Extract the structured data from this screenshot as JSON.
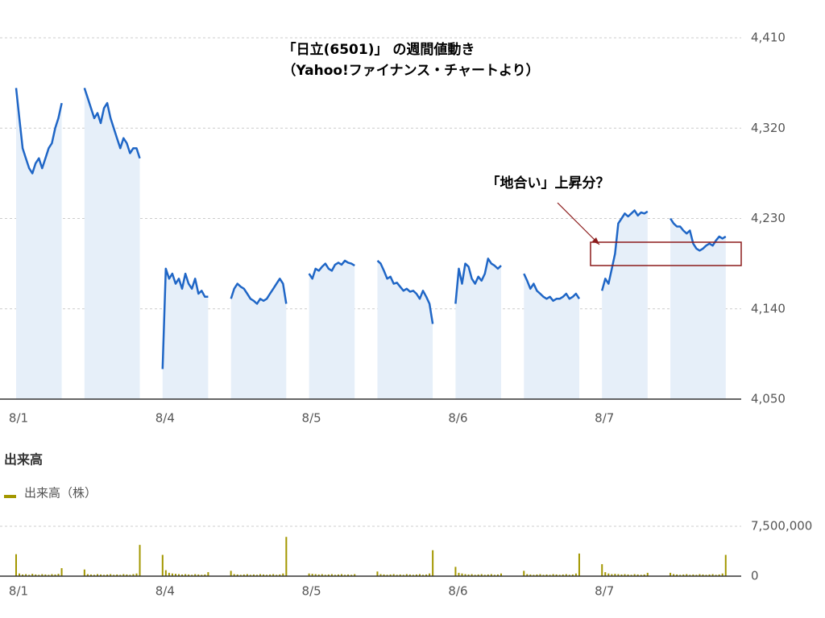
{
  "chart_data": [
    {
      "type": "line",
      "title": "「日立(6501)」 の週間値動き",
      "subtitle": "（Yahoo!ファイナンス・チャートより）",
      "annotation": "「地合い」上昇分？",
      "color": "#1f66c6",
      "xlim": [
        0,
        224
      ],
      "xticks": [
        {
          "value": 0,
          "label": "8/1"
        },
        {
          "value": 45,
          "label": "8/4"
        },
        {
          "value": 90,
          "label": "8/5"
        },
        {
          "value": 135,
          "label": "8/6"
        },
        {
          "value": 180,
          "label": "8/7"
        }
      ],
      "ylim": [
        4050,
        4410
      ],
      "yticks": [
        {
          "value": 4050,
          "label": "4,050"
        },
        {
          "value": 4140,
          "label": "4,140"
        },
        {
          "value": 4230,
          "label": "4,230"
        },
        {
          "value": 4320,
          "label": "4,320"
        },
        {
          "value": 4410,
          "label": "4,410"
        }
      ],
      "grid": true,
      "values": [
        4360,
        4330,
        4300,
        4290,
        4280,
        4275,
        4285,
        4290,
        4280,
        4290,
        4300,
        4305,
        4320,
        4330,
        4345,
        null,
        null,
        null,
        null,
        null,
        null,
        4360,
        4350,
        4340,
        4330,
        4335,
        4325,
        4340,
        4345,
        4330,
        4320,
        4310,
        4300,
        4310,
        4305,
        4295,
        4300,
        4300,
        4290,
        null,
        null,
        null,
        null,
        null,
        null,
        4080,
        4180,
        4170,
        4175,
        4165,
        4170,
        4160,
        4175,
        4165,
        4160,
        4170,
        4155,
        4158,
        4152,
        4152,
        null,
        null,
        null,
        null,
        null,
        null,
        4150,
        4160,
        4165,
        4162,
        4160,
        4155,
        4150,
        4148,
        4145,
        4150,
        4148,
        4150,
        4155,
        4160,
        4165,
        4170,
        4165,
        4145,
        null,
        null,
        null,
        null,
        null,
        null,
        4175,
        4170,
        4180,
        4178,
        4182,
        4185,
        4180,
        4178,
        4184,
        4186,
        4184,
        4188,
        4186,
        4185,
        4183,
        null,
        null,
        null,
        null,
        null,
        null,
        4188,
        4185,
        4178,
        4170,
        4172,
        4165,
        4166,
        4162,
        4158,
        4160,
        4157,
        4158,
        4155,
        4150,
        4158,
        4152,
        4145,
        4125,
        null,
        null,
        null,
        null,
        null,
        null,
        4145,
        4180,
        4165,
        4185,
        4182,
        4170,
        4165,
        4172,
        4168,
        4175,
        4190,
        4185,
        4183,
        4180,
        4183,
        null,
        null,
        null,
        null,
        null,
        null,
        4175,
        4168,
        4160,
        4165,
        4158,
        4155,
        4152,
        4150,
        4152,
        4148,
        4150,
        4150,
        4152,
        4155,
        4150,
        4152,
        4155,
        4150,
        null,
        null,
        null,
        null,
        null,
        null,
        4158,
        4170,
        4165,
        4180,
        4195,
        4225,
        4230,
        4235,
        4232,
        4235,
        4238,
        4233,
        4236,
        4235,
        4237,
        null,
        null,
        null,
        null,
        null,
        null,
        4230,
        4225,
        4222,
        4222,
        4218,
        4215,
        4218,
        4205,
        4200,
        4198,
        4200,
        4203,
        4205,
        4203,
        4208,
        4212,
        4210,
        4212
      ]
    },
    {
      "type": "bar",
      "title": "出来高",
      "xlim": [
        0,
        224
      ],
      "xticks": [
        {
          "value": 0,
          "label": "8/1"
        },
        {
          "value": 45,
          "label": "8/4"
        },
        {
          "value": 90,
          "label": "8/5"
        },
        {
          "value": 135,
          "label": "8/6"
        },
        {
          "value": 180,
          "label": "8/7"
        }
      ],
      "ylim": [
        0,
        7500000
      ],
      "yticks": [
        0,
        {
          "value": 7500000,
          "label": "7,500,000"
        }
      ],
      "grid": true,
      "series": [
        {
          "name": "出来高（株）",
          "color": "#a39700",
          "values": [
            3300000,
            400000,
            250000,
            300000,
            200000,
            350000,
            250000,
            200000,
            300000,
            250000,
            200000,
            300000,
            250000,
            350000,
            1200000,
            null,
            null,
            null,
            null,
            null,
            null,
            1000000,
            300000,
            250000,
            200000,
            300000,
            250000,
            200000,
            250000,
            300000,
            200000,
            250000,
            200000,
            300000,
            250000,
            200000,
            300000,
            400000,
            4700000,
            null,
            null,
            null,
            null,
            null,
            null,
            3200000,
            900000,
            500000,
            400000,
            350000,
            300000,
            250000,
            300000,
            250000,
            200000,
            300000,
            250000,
            200000,
            250000,
            600000,
            null,
            null,
            null,
            null,
            null,
            null,
            800000,
            300000,
            250000,
            200000,
            250000,
            300000,
            200000,
            250000,
            200000,
            300000,
            250000,
            200000,
            250000,
            300000,
            200000,
            250000,
            400000,
            5900000,
            null,
            null,
            null,
            null,
            null,
            null,
            400000,
            350000,
            300000,
            250000,
            300000,
            200000,
            250000,
            300000,
            200000,
            250000,
            300000,
            200000,
            250000,
            200000,
            300000,
            null,
            null,
            null,
            null,
            null,
            null,
            700000,
            300000,
            250000,
            200000,
            250000,
            300000,
            200000,
            250000,
            200000,
            300000,
            250000,
            200000,
            250000,
            300000,
            200000,
            250000,
            400000,
            3900000,
            null,
            null,
            null,
            null,
            null,
            null,
            1400000,
            500000,
            400000,
            300000,
            250000,
            300000,
            200000,
            250000,
            300000,
            200000,
            250000,
            300000,
            200000,
            250000,
            400000,
            null,
            null,
            null,
            null,
            null,
            null,
            800000,
            300000,
            250000,
            200000,
            250000,
            300000,
            200000,
            250000,
            200000,
            300000,
            250000,
            200000,
            250000,
            300000,
            200000,
            250000,
            400000,
            3400000,
            null,
            null,
            null,
            null,
            null,
            null,
            1800000,
            600000,
            400000,
            300000,
            350000,
            300000,
            250000,
            300000,
            250000,
            200000,
            300000,
            250000,
            200000,
            250000,
            500000,
            null,
            null,
            null,
            null,
            null,
            null,
            500000,
            300000,
            250000,
            200000,
            250000,
            300000,
            200000,
            250000,
            200000,
            300000,
            250000,
            200000,
            250000,
            300000,
            200000,
            250000,
            400000,
            3200000
          ]
        }
      ]
    }
  ]
}
